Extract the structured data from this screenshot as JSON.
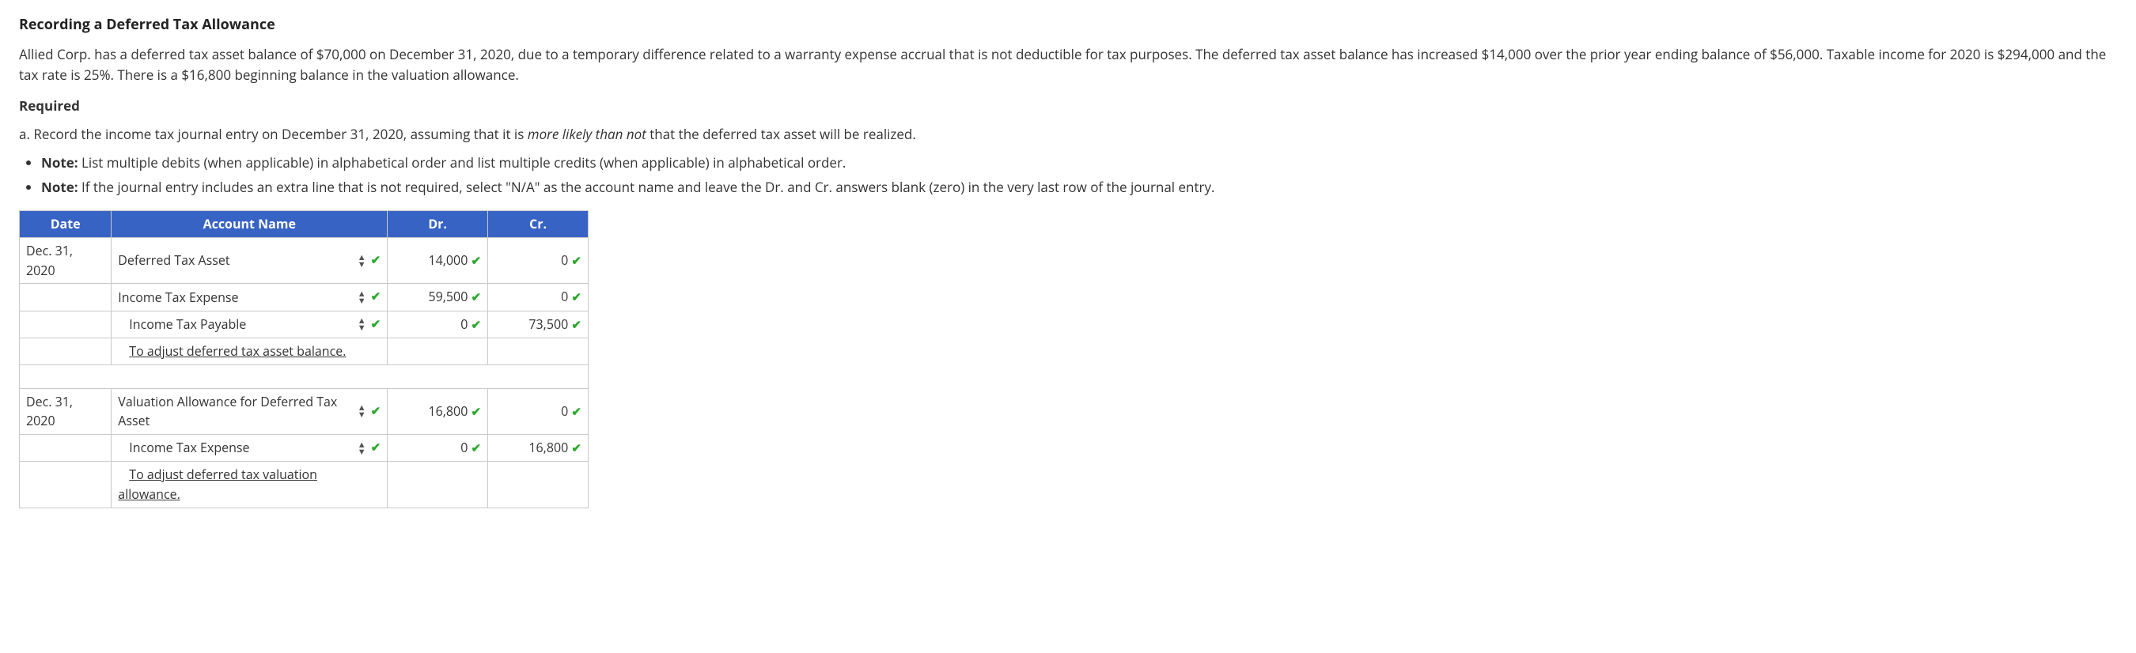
{
  "title": "Recording a Deferred Tax Allowance",
  "body": "Allied Corp. has a deferred tax asset balance of $70,000 on December 31, 2020, due to a temporary difference related to a warranty expense accrual that is not deductible for tax purposes. The deferred tax asset balance has increased $14,000 over the prior year ending balance of $56,000. Taxable income for 2020 is $294,000 and the tax rate is 25%. There is a $16,800 beginning balance in the valuation allowance.",
  "required_label": "Required",
  "requirement_a_prefix": "a. Record the income tax journal entry on December 31, 2020, assuming that it is ",
  "requirement_a_emph": "more likely than not",
  "requirement_a_suffix": " that the deferred tax asset will be realized.",
  "notes": [
    {
      "bold": "Note:",
      "text": " List multiple debits (when applicable) in alphabetical order and list multiple credits (when applicable) in alphabetical order."
    },
    {
      "bold": "Note:",
      "text": " If the journal entry includes an extra line that is not required, select \"N/A\" as the account name and leave the Dr. and Cr. answers blank (zero) in the very last row of the journal entry."
    }
  ],
  "table": {
    "header_bg": "#3763c4",
    "header_color": "#ffffff",
    "border_color": "#c9c9c9",
    "grey_row_bg": "#f0f0f0",
    "check_color": "#2ba82b",
    "columns": {
      "date": "Date",
      "account": "Account Name",
      "dr": "Dr.",
      "cr": "Cr."
    },
    "rows": [
      {
        "grey": true,
        "date": "Dec. 31, 2020",
        "account": "Deferred Tax Asset",
        "indent": 0,
        "select": true,
        "dr": "14,000",
        "cr": "0"
      },
      {
        "grey": false,
        "date": "",
        "account": "Income Tax Expense",
        "indent": 0,
        "select": true,
        "dr": "59,500",
        "cr": "0"
      },
      {
        "grey": false,
        "date": "",
        "account": "Income Tax Payable",
        "indent": 1,
        "select": true,
        "dr": "0",
        "cr": "73,500"
      },
      {
        "grey": false,
        "date": "",
        "account": "To adjust deferred tax asset balance.",
        "indent": 1,
        "select": false,
        "desc": true,
        "dr": "",
        "cr": ""
      },
      {
        "spacer": true
      },
      {
        "grey": true,
        "date": "Dec. 31, 2020",
        "account": "Valuation Allowance for Deferred Tax Asset",
        "indent": 0,
        "select": true,
        "dr": "16,800",
        "cr": "0"
      },
      {
        "grey": false,
        "date": "",
        "account": "Income Tax Expense",
        "indent": 1,
        "select": true,
        "dr": "0",
        "cr": "16,800"
      },
      {
        "grey": false,
        "date": "",
        "account": "To adjust deferred tax valuation allowance.",
        "indent": 1,
        "select": false,
        "desc": true,
        "dr": "",
        "cr": ""
      }
    ]
  }
}
